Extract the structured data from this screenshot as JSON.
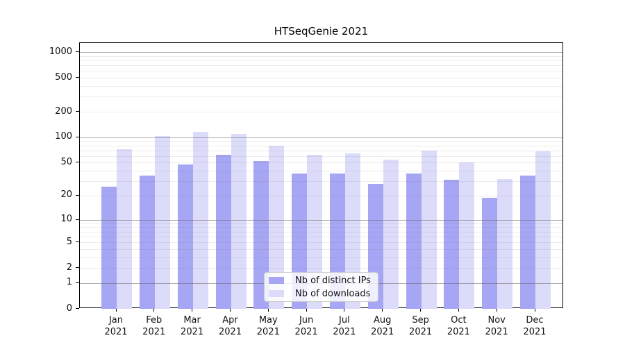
{
  "chart_data": {
    "type": "bar",
    "title": "HTSeqGenie 2021",
    "categories": [
      "Jan",
      "Feb",
      "Mar",
      "Apr",
      "May",
      "Jun",
      "Jul",
      "Aug",
      "Sep",
      "Oct",
      "Nov",
      "Dec"
    ],
    "category_year": "2021",
    "series": [
      {
        "name": "Nb of distinct IPs",
        "color": "#a6a6f4",
        "values": [
          26,
          35,
          48,
          62,
          52,
          37,
          37,
          28,
          37,
          31,
          19,
          35
        ]
      },
      {
        "name": "Nb of downloads",
        "color": "#dcdcfa",
        "values": [
          73,
          104,
          117,
          109,
          80,
          62,
          64,
          54,
          70,
          50,
          32,
          68
        ]
      }
    ],
    "yscale": "log10(1+v)",
    "ylim": [
      0,
      1275
    ],
    "y_tick_values": [
      0,
      1,
      2,
      5,
      10,
      20,
      50,
      100,
      200,
      500,
      1000
    ],
    "y_major_gridlines": [
      1,
      10,
      100,
      1000
    ],
    "y_minor_gridlines": [
      2,
      3,
      4,
      5,
      6,
      7,
      8,
      9,
      20,
      30,
      40,
      50,
      60,
      70,
      80,
      90,
      200,
      300,
      400,
      500,
      600,
      700,
      800,
      900
    ],
    "grid": true,
    "legend_position": "lower-center"
  },
  "colors": {
    "background": "#ffffff",
    "spine": "#000000",
    "major_grid": "#b4b4b4",
    "minor_grid": "#e9e9e9",
    "bar_distinct_ips": "#a6a6f4",
    "bar_downloads": "#dcdcfa",
    "legend_border": "#cccccc"
  }
}
